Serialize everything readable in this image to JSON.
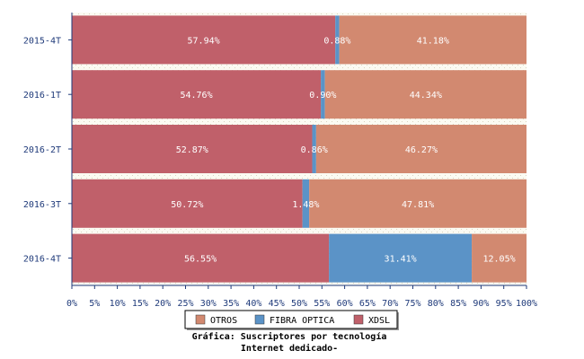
{
  "chart_data": {
    "type": "bar",
    "orientation": "horizontal",
    "stacked": true,
    "normalized": true,
    "categories": [
      "2015-4T",
      "2016-1T",
      "2016-2T",
      "2016-3T",
      "2016-4T"
    ],
    "series": [
      {
        "name": "XDSL",
        "color": "#c0606a",
        "values": [
          57.94,
          54.76,
          52.87,
          50.72,
          56.55
        ],
        "labels": [
          "57.94%",
          "54.76%",
          "52.87%",
          "50.72%",
          "56.55%"
        ]
      },
      {
        "name": "FIBRA OPTICA",
        "color": "#5b93c7",
        "values": [
          0.88,
          0.9,
          0.86,
          1.48,
          31.41
        ],
        "labels": [
          "0.88%",
          "0.90%",
          "0.86%",
          "1.48%",
          "31.41%"
        ]
      },
      {
        "name": "OTROS",
        "color": "#d28970",
        "values": [
          41.18,
          44.34,
          46.27,
          47.81,
          12.05
        ],
        "labels": [
          "41.18%",
          "44.34%",
          "46.27%",
          "47.81%",
          "12.05%"
        ]
      }
    ],
    "xlim": [
      0,
      100
    ],
    "x_ticks": [
      "0%",
      "5%",
      "10%",
      "15%",
      "20%",
      "25%",
      "30%",
      "35%",
      "40%",
      "45%",
      "50%",
      "55%",
      "60%",
      "65%",
      "70%",
      "75%",
      "80%",
      "85%",
      "90%",
      "95%",
      "100%"
    ],
    "legend": {
      "position": "bottom",
      "order": [
        "OTROS",
        "FIBRA OPTICA",
        "XDSL"
      ]
    },
    "title_line1": "Gráfica: Suscriptores por tecnología",
    "title_line2": "Internet dedicado-"
  }
}
